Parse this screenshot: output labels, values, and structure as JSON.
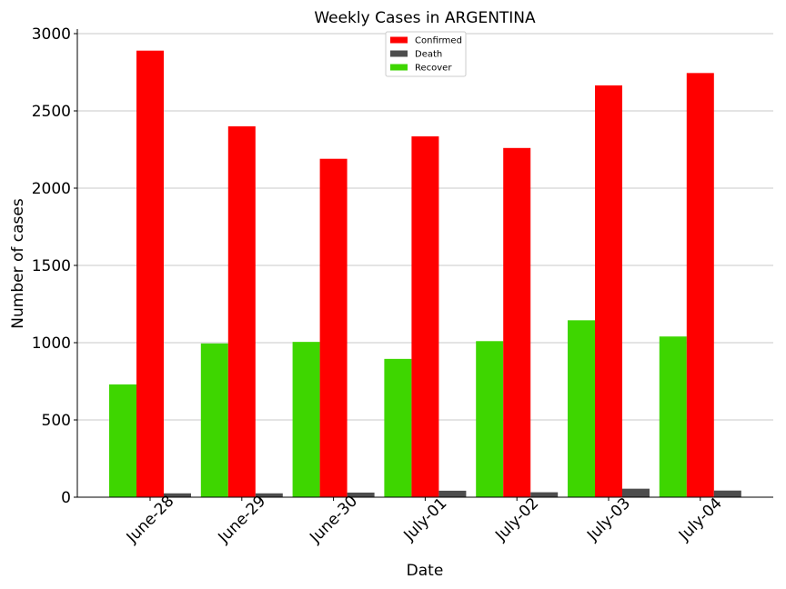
{
  "chart_data": {
    "type": "bar",
    "title": "Weekly Cases in ARGENTINA",
    "xlabel": "Date",
    "ylabel": "Number of cases",
    "categories": [
      "June-28",
      "June-29",
      "June-30",
      "July-01",
      "July-02",
      "July-03",
      "July-04"
    ],
    "series": [
      {
        "name": "Recover",
        "color": "#3ed600",
        "values": [
          730,
          995,
          1005,
          895,
          1010,
          1145,
          1040
        ]
      },
      {
        "name": "Confirmed",
        "color": "#ff0000",
        "values": [
          2890,
          2400,
          2190,
          2335,
          2260,
          2665,
          2745
        ]
      },
      {
        "name": "Death",
        "color": "#4d4d4d",
        "values": [
          25,
          25,
          30,
          42,
          32,
          55,
          43
        ]
      }
    ],
    "legend_order": [
      "Confirmed",
      "Death",
      "Recover"
    ],
    "ylim": [
      0,
      3000
    ],
    "yticks": [
      0,
      500,
      1000,
      1500,
      2000,
      2500,
      3000
    ],
    "grid": "horizontal",
    "legend_position": "top-center"
  }
}
